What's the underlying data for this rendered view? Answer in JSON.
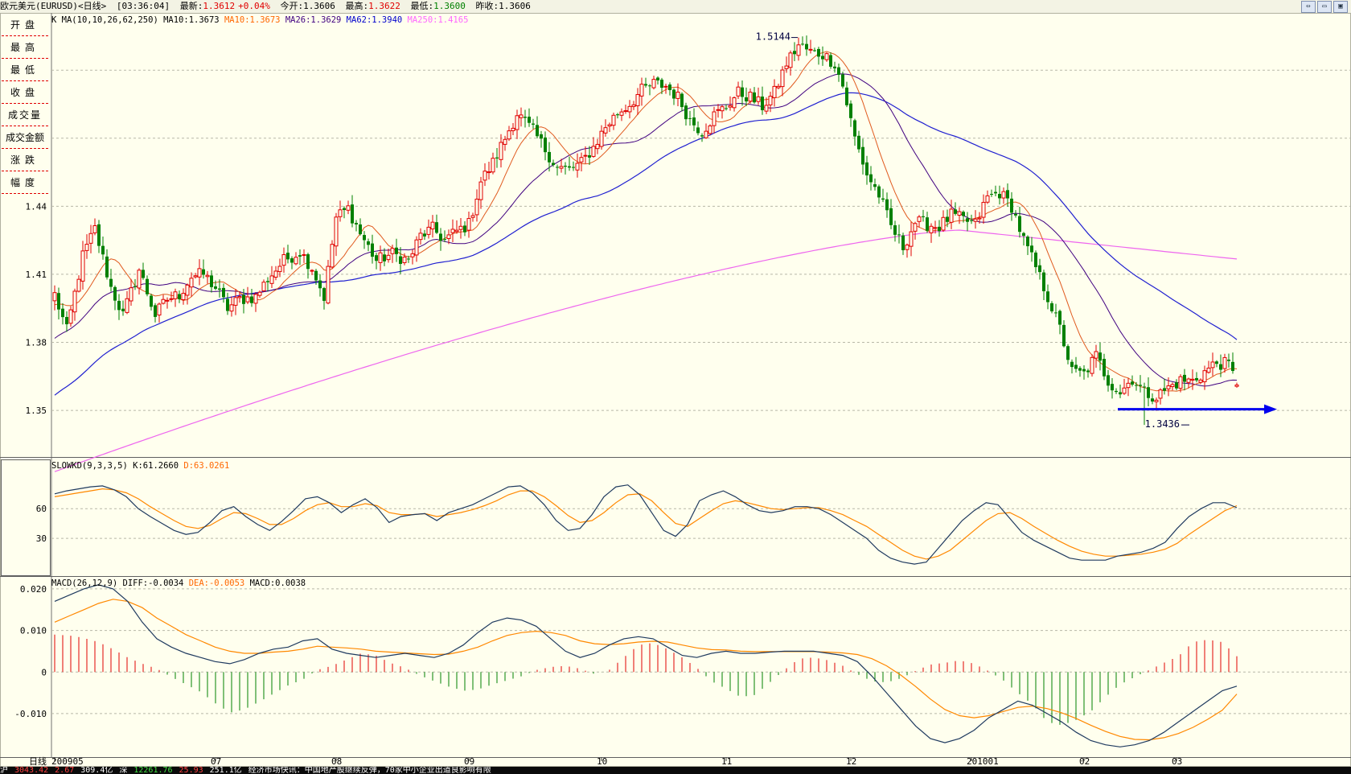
{
  "title_bar": {
    "instrument": "欧元美元(EURUSD)<日线>",
    "time": "[03:36:04]",
    "latest_label": "最新:",
    "latest_value": "1.3612",
    "change": "+0.04%",
    "open_label": "今开:",
    "open_value": "1.3606",
    "high_label": "最高:",
    "high_value": "1.3622",
    "low_label": "最低:",
    "low_value": "1.3600",
    "prev_close_label": "昨收:",
    "prev_close_value": "1.3606"
  },
  "left_panel": {
    "items": [
      "开盘",
      "最高",
      "最低",
      "收盘",
      "成交量",
      "成交金额",
      "涨跌",
      "幅度"
    ]
  },
  "window_buttons": [
    "restore-icon",
    "minimize-icon",
    "close-icon"
  ],
  "colors": {
    "background": "#ffffee",
    "candle_up": "#e00000",
    "candle_down": "#008000",
    "ma10": "#e05a1e",
    "ma26": "#400080",
    "ma62": "#2020d0",
    "ma250": "#ee66ee",
    "k_line": "#1f3a5f",
    "d_line": "#ff8800",
    "annotation_arrow": "#0000ee"
  },
  "chart_data": [
    {
      "type": "candlestick",
      "panel": "price",
      "header": {
        "panel_label": "K",
        "indicator": "MA(10,10,26,62,250)",
        "series_labels": [
          "MA10:1.3673",
          "MA10:1.3673",
          "MA26:1.3629",
          "MA62:1.3940",
          "MA250:1.4165"
        ]
      },
      "y_ticks": [
        "1.44",
        "1.41",
        "1.38",
        "1.35"
      ],
      "ylim": [
        1.333,
        1.521
      ],
      "annotations": {
        "high": "1.5144",
        "low": "1.3436"
      },
      "x_tick_labels": [
        "200905",
        "07",
        "08",
        "09",
        "10",
        "11",
        "12",
        "201001",
        "02",
        "03"
      ],
      "x_tick_indices": [
        0,
        40,
        70,
        103,
        136,
        167,
        198,
        228,
        256,
        279
      ],
      "anchors_close": [
        [
          0,
          1.401
        ],
        [
          3,
          1.385
        ],
        [
          7,
          1.418
        ],
        [
          10,
          1.43
        ],
        [
          14,
          1.404
        ],
        [
          17,
          1.392
        ],
        [
          21,
          1.412
        ],
        [
          25,
          1.392
        ],
        [
          28,
          1.399
        ],
        [
          31,
          1.401
        ],
        [
          34,
          1.409
        ],
        [
          37,
          1.41
        ],
        [
          40,
          1.404
        ],
        [
          43,
          1.395
        ],
        [
          46,
          1.399
        ],
        [
          50,
          1.4
        ],
        [
          53,
          1.408
        ],
        [
          57,
          1.416
        ],
        [
          61,
          1.42
        ],
        [
          64,
          1.413
        ],
        [
          67,
          1.4
        ],
        [
          70,
          1.435
        ],
        [
          73,
          1.439
        ],
        [
          76,
          1.428
        ],
        [
          80,
          1.416
        ],
        [
          84,
          1.419
        ],
        [
          88,
          1.416
        ],
        [
          91,
          1.427
        ],
        [
          94,
          1.43
        ],
        [
          97,
          1.425
        ],
        [
          100,
          1.429
        ],
        [
          103,
          1.432
        ],
        [
          106,
          1.451
        ],
        [
          109,
          1.459
        ],
        [
          112,
          1.47
        ],
        [
          115,
          1.481
        ],
        [
          119,
          1.473
        ],
        [
          122,
          1.465
        ],
        [
          125,
          1.457
        ],
        [
          128,
          1.456
        ],
        [
          131,
          1.459
        ],
        [
          134,
          1.466
        ],
        [
          137,
          1.475
        ],
        [
          140,
          1.481
        ],
        [
          143,
          1.485
        ],
        [
          146,
          1.491
        ],
        [
          149,
          1.494
        ],
        [
          152,
          1.493
        ],
        [
          155,
          1.488
        ],
        [
          158,
          1.478
        ],
        [
          161,
          1.473
        ],
        [
          164,
          1.48
        ],
        [
          167,
          1.484
        ],
        [
          170,
          1.49
        ],
        [
          173,
          1.488
        ],
        [
          176,
          1.484
        ],
        [
          179,
          1.49
        ],
        [
          182,
          1.503
        ],
        [
          185,
          1.511
        ],
        [
          188,
          1.508
        ],
        [
          191,
          1.507
        ],
        [
          194,
          1.503
        ],
        [
          196,
          1.493
        ],
        [
          199,
          1.47
        ],
        [
          202,
          1.454
        ],
        [
          205,
          1.445
        ],
        [
          208,
          1.431
        ],
        [
          211,
          1.422
        ],
        [
          214,
          1.433
        ],
        [
          217,
          1.432
        ],
        [
          220,
          1.431
        ],
        [
          223,
          1.436
        ],
        [
          226,
          1.434
        ],
        [
          229,
          1.432
        ],
        [
          232,
          1.444
        ],
        [
          235,
          1.446
        ],
        [
          238,
          1.44
        ],
        [
          241,
          1.425
        ],
        [
          244,
          1.413
        ],
        [
          247,
          1.4
        ],
        [
          250,
          1.386
        ],
        [
          253,
          1.367
        ],
        [
          256,
          1.366
        ],
        [
          259,
          1.374
        ],
        [
          262,
          1.363
        ],
        [
          265,
          1.358
        ],
        [
          268,
          1.364
        ],
        [
          271,
          1.358
        ],
        [
          274,
          1.356
        ],
        [
          277,
          1.36
        ],
        [
          280,
          1.363
        ],
        [
          283,
          1.363
        ],
        [
          286,
          1.367
        ],
        [
          289,
          1.371
        ],
        [
          292,
          1.37
        ],
        [
          294,
          1.3612
        ]
      ],
      "low_annotation_index": 271,
      "high_annotation_index": 185,
      "moving_averages": [
        "MA10",
        "MA26",
        "MA62",
        "MA250"
      ]
    },
    {
      "type": "line",
      "panel": "slowkd",
      "header": {
        "indicator": "SLOWKD(9,3,3,5)",
        "k_label": "K:61.2660",
        "d_label": "D:63.0261"
      },
      "y_ticks": [
        "60",
        "30"
      ],
      "ylim": [
        0,
        100
      ],
      "series": [
        {
          "name": "K",
          "values": [
            75,
            78,
            80,
            82,
            83,
            79,
            72,
            60,
            52,
            45,
            38,
            34,
            36,
            46,
            58,
            62,
            52,
            44,
            38,
            47,
            58,
            70,
            72,
            66,
            56,
            64,
            70,
            61,
            46,
            52,
            54,
            55,
            48,
            56,
            60,
            64,
            70,
            76,
            82,
            83,
            76,
            64,
            48,
            38,
            40,
            54,
            72,
            82,
            84,
            74,
            56,
            38,
            32,
            44,
            68,
            74,
            78,
            72,
            64,
            58,
            56,
            58,
            62,
            62,
            60,
            54,
            46,
            38,
            30,
            18,
            10,
            6,
            4,
            6,
            20,
            34,
            48,
            58,
            66,
            64,
            50,
            36,
            28,
            22,
            16,
            10,
            8,
            8,
            8,
            12,
            14,
            16,
            20,
            26,
            40,
            52,
            60,
            66,
            66,
            61
          ]
        },
        {
          "name": "D",
          "values": [
            72,
            74,
            76,
            78,
            80,
            79,
            76,
            70,
            62,
            55,
            48,
            42,
            40,
            43,
            50,
            56,
            55,
            50,
            44,
            44,
            50,
            58,
            64,
            66,
            62,
            62,
            65,
            63,
            56,
            54,
            54,
            55,
            52,
            54,
            56,
            59,
            63,
            68,
            74,
            78,
            78,
            72,
            63,
            53,
            46,
            48,
            56,
            66,
            74,
            75,
            68,
            56,
            45,
            42,
            50,
            58,
            65,
            68,
            66,
            63,
            60,
            59,
            60,
            61,
            61,
            58,
            54,
            48,
            42,
            34,
            26,
            18,
            12,
            9,
            12,
            18,
            28,
            38,
            48,
            55,
            56,
            50,
            42,
            35,
            28,
            22,
            17,
            14,
            12,
            12,
            13,
            14,
            16,
            19,
            25,
            34,
            42,
            50,
            58,
            63
          ]
        }
      ]
    },
    {
      "type": "bar+line",
      "panel": "macd",
      "header": {
        "indicator": "MACD(26,12,9)",
        "diff_label": "DIFF:-0.0034",
        "dea_label": "DEA:-0.0053",
        "macd_label": "MACD:0.0038"
      },
      "y_ticks": [
        "0.020",
        "0.010",
        "0",
        "-0.010"
      ],
      "ylim": [
        -0.0195,
        0.0225
      ],
      "series": [
        {
          "name": "DIFF",
          "values": [
            0.017,
            0.0185,
            0.02,
            0.021,
            0.02,
            0.017,
            0.012,
            0.008,
            0.006,
            0.0045,
            0.0035,
            0.0025,
            0.002,
            0.003,
            0.0045,
            0.0055,
            0.006,
            0.0075,
            0.008,
            0.0055,
            0.0045,
            0.004,
            0.0035,
            0.004,
            0.0045,
            0.004,
            0.0035,
            0.0045,
            0.0065,
            0.0095,
            0.012,
            0.013,
            0.0125,
            0.011,
            0.008,
            0.005,
            0.0035,
            0.0045,
            0.0065,
            0.008,
            0.0085,
            0.008,
            0.006,
            0.004,
            0.0035,
            0.0045,
            0.005,
            0.0045,
            0.0045,
            0.0048,
            0.005,
            0.005,
            0.005,
            0.0045,
            0.004,
            0.0025,
            -0.001,
            -0.005,
            -0.009,
            -0.013,
            -0.016,
            -0.017,
            -0.016,
            -0.014,
            -0.011,
            -0.009,
            -0.007,
            -0.008,
            -0.01,
            -0.012,
            -0.0145,
            -0.0165,
            -0.0175,
            -0.018,
            -0.0175,
            -0.0165,
            -0.0145,
            -0.012,
            -0.0095,
            -0.007,
            -0.0045,
            -0.0034
          ]
        },
        {
          "name": "DEA",
          "values": [
            0.012,
            0.0135,
            0.015,
            0.0165,
            0.0175,
            0.017,
            0.0155,
            0.013,
            0.011,
            0.009,
            0.0075,
            0.006,
            0.005,
            0.0045,
            0.0045,
            0.0048,
            0.005,
            0.0055,
            0.0062,
            0.006,
            0.0058,
            0.0055,
            0.005,
            0.0048,
            0.0046,
            0.0044,
            0.0042,
            0.0043,
            0.005,
            0.006,
            0.0075,
            0.0088,
            0.0095,
            0.0098,
            0.0095,
            0.0088,
            0.0075,
            0.0068,
            0.0066,
            0.0068,
            0.0072,
            0.0074,
            0.0072,
            0.0065,
            0.0058,
            0.0054,
            0.0053,
            0.005,
            0.0049,
            0.0049,
            0.0049,
            0.0049,
            0.0049,
            0.0048,
            0.0046,
            0.0042,
            0.0032,
            0.0015,
            -0.0008,
            -0.0035,
            -0.0065,
            -0.009,
            -0.0105,
            -0.011,
            -0.0105,
            -0.0095,
            -0.0085,
            -0.0082,
            -0.0088,
            -0.0098,
            -0.0112,
            -0.0128,
            -0.0143,
            -0.0155,
            -0.0162,
            -0.0163,
            -0.0158,
            -0.0148,
            -0.0133,
            -0.0114,
            -0.0092,
            -0.0053
          ]
        },
        {
          "name": "MACD",
          "values": [
            0.009,
            0.0088,
            0.0082,
            0.0072,
            0.0055,
            0.0035,
            0.002,
            0.0008,
            -0.0012,
            -0.003,
            -0.0048,
            -0.0075,
            -0.0098,
            -0.009,
            -0.0072,
            -0.0052,
            -0.0032,
            -0.0018,
            0.0005,
            0.0015,
            0.003,
            0.0045,
            0.004,
            0.0022,
            0.001,
            -0.0008,
            -0.0022,
            -0.0035,
            -0.0045,
            -0.0042,
            -0.003,
            -0.002,
            -0.001,
            0.0005,
            0.0012,
            0.0015,
            0.0008,
            -0.0005,
            0.0005,
            0.0035,
            0.0065,
            0.007,
            0.0055,
            0.0035,
            0.001,
            -0.0022,
            -0.004,
            -0.006,
            -0.0055,
            -0.0025,
            0.0005,
            0.0032,
            0.0035,
            0.0028,
            0.0015,
            -0.0005,
            -0.0022,
            -0.0025,
            -0.0015,
            0.0003,
            0.0018,
            0.0022,
            0.0028,
            0.002,
            0.0002,
            -0.002,
            -0.005,
            -0.0078,
            -0.012,
            -0.0128,
            -0.0115,
            -0.0095,
            -0.006,
            -0.003,
            -0.0012,
            0.0005,
            0.0022,
            0.0038,
            0.0072,
            0.0078,
            0.0072,
            0.0038
          ]
        }
      ]
    }
  ],
  "status_bar": {
    "items": [
      "沪",
      "3043.42",
      "2.67",
      "309.4亿",
      "深",
      "12261.76",
      "25.93",
      "251.1亿",
      "经济市场快讯：中国地产股继续反弹，70家中小企业出道良影响有限"
    ]
  }
}
